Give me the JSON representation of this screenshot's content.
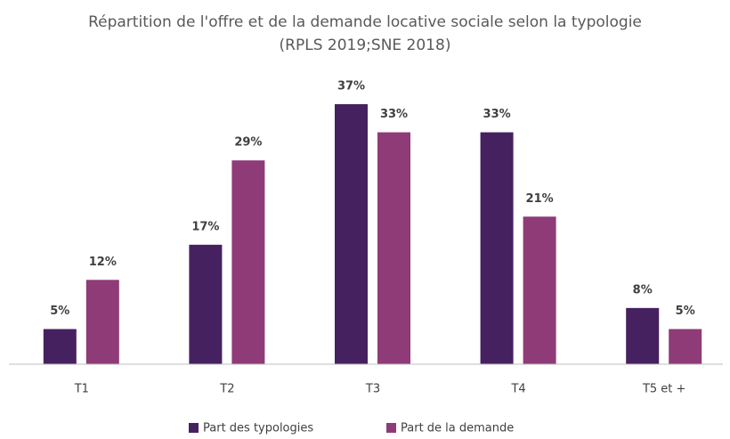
{
  "chart_data": {
    "type": "bar",
    "title": "Répartition de l'offre et de la demande locative sociale selon la typologie (RPLS 2019;SNE 2018)",
    "categories": [
      "T1",
      "T2",
      "T3",
      "T4",
      "T5 et +"
    ],
    "series": [
      {
        "name": "Part des typologies",
        "color": "#46215f",
        "values": [
          5,
          17,
          37,
          33,
          8
        ],
        "value_labels": [
          "5%",
          "17%",
          "37%",
          "33%",
          "8%"
        ]
      },
      {
        "name": "Part de la demande",
        "color": "#8e3b78",
        "values": [
          12,
          29,
          33,
          21,
          5
        ],
        "value_labels": [
          "12%",
          "29%",
          "33%",
          "21%",
          "5%"
        ]
      }
    ],
    "legend": "bottom"
  }
}
